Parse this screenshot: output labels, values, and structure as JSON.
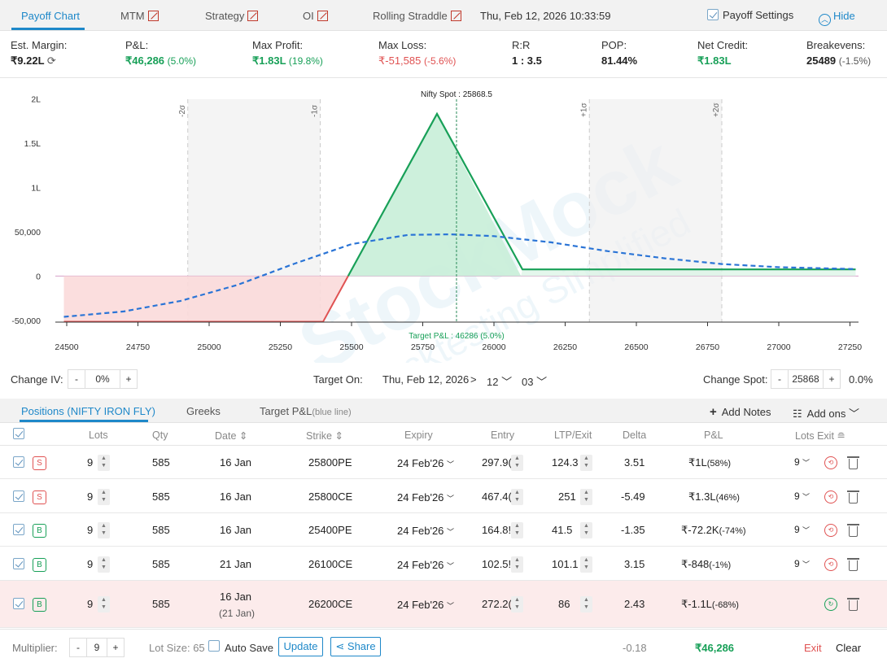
{
  "tabs": [
    {
      "label": "Payoff Chart",
      "icon": "",
      "active": true
    },
    {
      "label": "MTM",
      "icon": "chart-line-icon"
    },
    {
      "label": "Strategy",
      "icon": "chart-line-icon"
    },
    {
      "label": "OI",
      "icon": "chart-line-icon"
    },
    {
      "label": "Rolling Straddle",
      "icon": "chart-line-icon"
    }
  ],
  "timestamp": "Thu, Feb 12, 2026 10:33:59",
  "payoff_settings": "Payoff Settings",
  "hide": "Hide",
  "summary": {
    "est_margin": {
      "label": "Est. Margin:",
      "value": "₹9.22L"
    },
    "pnl": {
      "label": "P&L:",
      "value": "₹46,286",
      "pct": "(5.0%)"
    },
    "max_profit": {
      "label": "Max Profit:",
      "value": "₹1.83L",
      "pct": "(19.8%)"
    },
    "max_loss": {
      "label": "Max Loss:",
      "value": "₹-51,585",
      "pct": "(-5.6%)"
    },
    "rr": {
      "label": "R:R",
      "value": "1 : 3.5"
    },
    "pop": {
      "label": "POP:",
      "value": "81.44%"
    },
    "net_credit": {
      "label": "Net Credit:",
      "value": "₹1.83L"
    },
    "breakevens": {
      "label": "Breakevens:",
      "value": "25489",
      "pct": "(-1.5%)"
    }
  },
  "chart_data": {
    "type": "line",
    "x_ticks": [
      24500,
      24750,
      25000,
      25250,
      25500,
      25750,
      26000,
      26250,
      26500,
      26750,
      27000,
      27250
    ],
    "y_ticks": [
      {
        "v": -50000,
        "label": "-50,000"
      },
      {
        "v": 0,
        "label": "0"
      },
      {
        "v": 50000,
        "label": "50,000"
      },
      {
        "v": 100000,
        "label": "1L"
      },
      {
        "v": 150000,
        "label": "1.5L"
      },
      {
        "v": 200000,
        "label": "2L"
      }
    ],
    "xlim": [
      24460,
      27280
    ],
    "ylim": [
      -52000,
      205000
    ],
    "spot_label": "Nifty Spot : 25868.5",
    "spot": 25868.5,
    "target_label": "Target P&L : 46286 (5.0%)",
    "sigma_lines": [
      {
        "x": 24925,
        "label": "-2σ"
      },
      {
        "x": 25390,
        "label": "-1σ"
      },
      {
        "x": 26335,
        "label": "+1σ"
      },
      {
        "x": 26800,
        "label": "+2σ"
      }
    ],
    "series": [
      {
        "kind": "expiry",
        "points": [
          [
            24490,
            -51585
          ],
          [
            25400,
            -51585
          ],
          [
            25800,
            183000
          ],
          [
            26100,
            7500
          ],
          [
            27270,
            7500
          ]
        ]
      },
      {
        "kind": "target",
        "points": [
          [
            24490,
            -46000
          ],
          [
            24700,
            -40000
          ],
          [
            24900,
            -28000
          ],
          [
            25100,
            -10000
          ],
          [
            25300,
            14000
          ],
          [
            25500,
            36000
          ],
          [
            25700,
            46500
          ],
          [
            25850,
            47000
          ],
          [
            26000,
            45000
          ],
          [
            26200,
            38000
          ],
          [
            26400,
            28000
          ],
          [
            26600,
            20000
          ],
          [
            26800,
            13500
          ],
          [
            27000,
            10000
          ],
          [
            27270,
            7800
          ]
        ]
      }
    ]
  },
  "controls": {
    "change_iv_label": "Change IV:",
    "iv_value": "0%",
    "target_on_label": "Target On:",
    "target_date": "Thu, Feb 12, 2026",
    "target_hour": "12",
    "target_min": "03",
    "change_spot_label": "Change Spot:",
    "spot_value": "25868",
    "spot_pct": "0.0%"
  },
  "ptabs": {
    "positions": "Positions (NIFTY IRON FLY)",
    "greeks": "Greeks",
    "target": "Target P&L",
    "target_sub": "(blue line)",
    "add_notes": "Add Notes",
    "add_ons": "Add ons"
  },
  "headers": {
    "lots": "Lots",
    "qty": "Qty",
    "date": "Date",
    "strike": "Strike",
    "expiry": "Expiry",
    "entry": "Entry",
    "ltp": "LTP/Exit",
    "delta": "Delta",
    "pnl": "P&L",
    "lots_exit": "Lots Exit"
  },
  "rows": [
    {
      "side": "S",
      "lots": "9",
      "qty": "585",
      "date": "16 Jan",
      "date2": "",
      "strike": "25800PE",
      "expiry": "24 Feb'26",
      "entry": "297.9(",
      "ltp": "124.3",
      "delta": "3.51",
      "pnl": "₹1L",
      "pnl_pct": "(58%)",
      "pnl_pos": true,
      "exit_lots": "9"
    },
    {
      "side": "S",
      "lots": "9",
      "qty": "585",
      "date": "16 Jan",
      "date2": "",
      "strike": "25800CE",
      "expiry": "24 Feb'26",
      "entry": "467.4(",
      "ltp": "251",
      "delta": "-5.49",
      "pnl": "₹1.3L",
      "pnl_pct": "(46%)",
      "pnl_pos": true,
      "exit_lots": "9"
    },
    {
      "side": "B",
      "lots": "9",
      "qty": "585",
      "date": "16 Jan",
      "date2": "",
      "strike": "25400PE",
      "expiry": "24 Feb'26",
      "entry": "164.8!",
      "ltp": "41.5",
      "delta": "-1.35",
      "pnl": "₹-72.2K",
      "pnl_pct": "(-74%)",
      "pnl_pos": false,
      "exit_lots": "9"
    },
    {
      "side": "B",
      "lots": "9",
      "qty": "585",
      "date": "21 Jan",
      "date2": "",
      "strike": "26100CE",
      "expiry": "24 Feb'26",
      "entry": "102.5!",
      "ltp": "101.1",
      "delta": "3.15",
      "pnl": "₹-848",
      "pnl_pct": "(-1%)",
      "pnl_pos": false,
      "exit_lots": "9"
    },
    {
      "side": "B",
      "lots": "9",
      "qty": "585",
      "date": "16 Jan",
      "date2": "(21 Jan)",
      "strike": "26200CE",
      "expiry": "24 Feb'26",
      "entry": "272.2(",
      "ltp": "86",
      "delta": "2.43",
      "pnl": "₹-1.1L",
      "pnl_pct": "(-68%)",
      "pnl_pos": false,
      "exit_lots": ""
    }
  ],
  "footer": {
    "multiplier_label": "Multiplier:",
    "multiplier": "9",
    "lot_size": "Lot Size: 65",
    "auto_save": "Auto Save",
    "update": "Update",
    "share": "Share",
    "delta_total": "-0.18",
    "pnl_total": "₹46,286",
    "exit": "Exit",
    "clear": "Clear"
  },
  "colors": {
    "accent": "#1e88c9",
    "profit": "#18a058",
    "loss": "#e05252",
    "target_line": "#2a74d6"
  },
  "watermark": {
    "brand": "StockMock",
    "tagline": "Backtesting Simplified"
  }
}
